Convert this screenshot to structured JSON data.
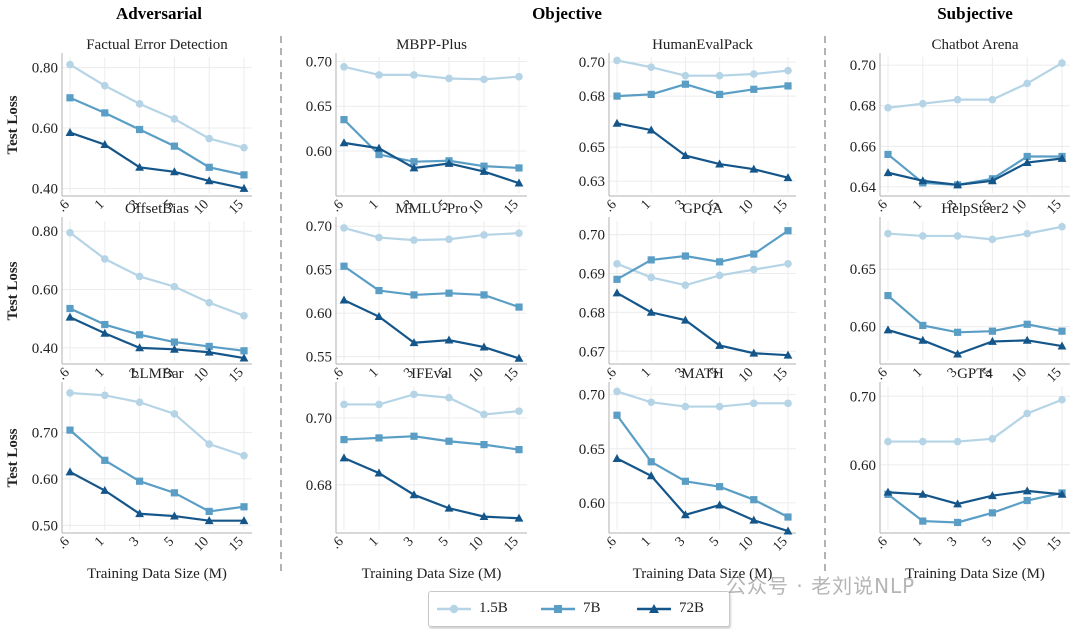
{
  "group_titles": {
    "adversarial": "Adversarial",
    "objective": "Objective",
    "subjective": "Subjective"
  },
  "legend": [
    {
      "label": "1.5B",
      "color": "#b5d4e6",
      "marker": "circle"
    },
    {
      "label": "7B",
      "color": "#5a9ec6",
      "marker": "square"
    },
    {
      "label": "72B",
      "color": "#15568a",
      "marker": "triangle"
    }
  ],
  "watermark": "公众号 · 老刘说NLP",
  "chart_data": [
    {
      "type": "line",
      "title": "Factual Error Detection",
      "ylabel": "Test Loss",
      "xlabel": "",
      "x": [
        ".6",
        "1",
        "3",
        "5",
        "10",
        "15"
      ],
      "yticks": [
        "0.80",
        "0.60",
        "0.40"
      ],
      "ytick_values": [
        0.8,
        0.6,
        0.4
      ],
      "ylim": [
        0.385,
        0.835
      ],
      "series": [
        {
          "name": "1.5B",
          "values": [
            0.81,
            0.74,
            0.68,
            0.63,
            0.565,
            0.535
          ]
        },
        {
          "name": "7B",
          "values": [
            0.7,
            0.65,
            0.595,
            0.54,
            0.47,
            0.445
          ]
        },
        {
          "name": "72B",
          "values": [
            0.585,
            0.545,
            0.47,
            0.455,
            0.425,
            0.4
          ]
        }
      ]
    },
    {
      "type": "line",
      "title": "MBPP-Plus",
      "ylabel": "",
      "xlabel": "",
      "x": [
        ".6",
        "1",
        "3",
        "5",
        "10",
        "15"
      ],
      "yticks": [
        "0.70",
        "0.65",
        "0.60"
      ],
      "ytick_values": [
        0.7,
        0.65,
        0.6
      ],
      "ylim": [
        0.553,
        0.705
      ],
      "series": [
        {
          "name": "1.5B",
          "values": [
            0.694,
            0.685,
            0.685,
            0.681,
            0.68,
            0.683
          ]
        },
        {
          "name": "7B",
          "values": [
            0.635,
            0.596,
            0.588,
            0.589,
            0.583,
            0.581
          ]
        },
        {
          "name": "72B",
          "values": [
            0.609,
            0.603,
            0.581,
            0.586,
            0.577,
            0.564
          ]
        }
      ]
    },
    {
      "type": "line",
      "title": "HumanEvalPack",
      "ylabel": "",
      "xlabel": "",
      "x": [
        ".6",
        "1",
        "3",
        "5",
        "10",
        "15"
      ],
      "yticks": [
        "0.70",
        "0.68",
        "0.65",
        "0.63"
      ],
      "ytick_values": [
        0.7,
        0.68,
        0.65,
        0.63
      ],
      "ylim": [
        0.623,
        0.703
      ],
      "series": [
        {
          "name": "1.5B",
          "values": [
            0.701,
            0.697,
            0.692,
            0.692,
            0.693,
            0.695
          ]
        },
        {
          "name": "7B",
          "values": [
            0.68,
            0.681,
            0.687,
            0.681,
            0.684,
            0.686
          ]
        },
        {
          "name": "72B",
          "values": [
            0.664,
            0.66,
            0.645,
            0.64,
            0.637,
            0.632
          ]
        }
      ]
    },
    {
      "type": "line",
      "title": "Chatbot Arena",
      "ylabel": "",
      "xlabel": "",
      "x": [
        ".6",
        "1",
        "3",
        "5",
        "10",
        "15"
      ],
      "yticks": [
        "0.70",
        "0.68",
        "0.66",
        "0.64"
      ],
      "ytick_values": [
        0.7,
        0.68,
        0.66,
        0.64
      ],
      "ylim": [
        0.637,
        0.704
      ],
      "series": [
        {
          "name": "1.5B",
          "values": [
            0.679,
            0.681,
            0.683,
            0.683,
            0.691,
            0.701
          ]
        },
        {
          "name": "7B",
          "values": [
            0.656,
            0.642,
            0.641,
            0.644,
            0.655,
            0.655
          ]
        },
        {
          "name": "72B",
          "values": [
            0.647,
            0.643,
            0.641,
            0.643,
            0.652,
            0.654
          ]
        }
      ]
    },
    {
      "type": "line",
      "title": "OffsetBias",
      "ylabel": "Test Loss",
      "xlabel": "",
      "x": [
        ".6",
        "1",
        "3",
        "5",
        "10",
        "15"
      ],
      "yticks": [
        "0.80",
        "0.60",
        "0.40"
      ],
      "ytick_values": [
        0.8,
        0.6,
        0.4
      ],
      "ylim": [
        0.355,
        0.835
      ],
      "series": [
        {
          "name": "1.5B",
          "values": [
            0.795,
            0.705,
            0.645,
            0.61,
            0.555,
            0.51
          ]
        },
        {
          "name": "7B",
          "values": [
            0.535,
            0.48,
            0.445,
            0.42,
            0.405,
            0.39
          ]
        },
        {
          "name": "72B",
          "values": [
            0.505,
            0.45,
            0.4,
            0.395,
            0.385,
            0.365
          ]
        }
      ]
    },
    {
      "type": "line",
      "title": "MMLU-Pro",
      "ylabel": "",
      "xlabel": "",
      "x": [
        ".6",
        "1",
        "3",
        "5",
        "10",
        "15"
      ],
      "yticks": [
        "0.70",
        "0.65",
        "0.60",
        "0.55"
      ],
      "ytick_values": [
        0.7,
        0.65,
        0.6,
        0.55
      ],
      "ylim": [
        0.545,
        0.706
      ],
      "series": [
        {
          "name": "1.5B",
          "values": [
            0.698,
            0.687,
            0.684,
            0.685,
            0.69,
            0.692
          ]
        },
        {
          "name": "7B",
          "values": [
            0.654,
            0.626,
            0.621,
            0.623,
            0.621,
            0.607
          ]
        },
        {
          "name": "72B",
          "values": [
            0.615,
            0.596,
            0.566,
            0.569,
            0.561,
            0.548
          ]
        }
      ]
    },
    {
      "type": "line",
      "title": "GPQA",
      "ylabel": "",
      "xlabel": "",
      "x": [
        ".6",
        "1",
        "3",
        "5",
        "10",
        "15"
      ],
      "yticks": [
        "0.70",
        "0.69",
        "0.68",
        "0.67"
      ],
      "ytick_values": [
        0.7,
        0.69,
        0.68,
        0.67
      ],
      "ylim": [
        0.6675,
        0.7035
      ],
      "series": [
        {
          "name": "1.5B",
          "values": [
            0.6925,
            0.689,
            0.687,
            0.6895,
            0.691,
            0.6925
          ]
        },
        {
          "name": "7B",
          "values": [
            0.6885,
            0.6935,
            0.6945,
            0.693,
            0.695,
            0.701
          ]
        },
        {
          "name": "72B",
          "values": [
            0.685,
            0.68,
            0.678,
            0.6715,
            0.6695,
            0.669
          ]
        }
      ]
    },
    {
      "type": "line",
      "title": "HelpSteer2",
      "ylabel": "",
      "xlabel": "",
      "x": [
        ".6",
        "1",
        "3",
        "5",
        "10",
        "15"
      ],
      "yticks": [
        "0.65",
        "0.60"
      ],
      "ytick_values": [
        0.65,
        0.6
      ],
      "ylim": [
        0.57,
        0.692
      ],
      "series": [
        {
          "name": "1.5B",
          "values": [
            0.681,
            0.679,
            0.679,
            0.676,
            0.681,
            0.687
          ]
        },
        {
          "name": "7B",
          "values": [
            0.627,
            0.601,
            0.595,
            0.596,
            0.602,
            0.596
          ]
        },
        {
          "name": "72B",
          "values": [
            0.597,
            0.588,
            0.576,
            0.587,
            0.588,
            0.583
          ]
        }
      ]
    },
    {
      "type": "line",
      "title": "LLMBar",
      "ylabel": "Test Loss",
      "xlabel": "Training Data Size (M)",
      "x": [
        ".6",
        "1",
        "3",
        "5",
        "10",
        "15"
      ],
      "yticks": [
        "0.70",
        "0.60",
        "0.50"
      ],
      "ytick_values": [
        0.7,
        0.6,
        0.5
      ],
      "ylim": [
        0.49,
        0.8
      ],
      "series": [
        {
          "name": "1.5B",
          "values": [
            0.785,
            0.78,
            0.765,
            0.74,
            0.675,
            0.65
          ]
        },
        {
          "name": "7B",
          "values": [
            0.705,
            0.64,
            0.595,
            0.57,
            0.53,
            0.54
          ]
        },
        {
          "name": "72B",
          "values": [
            0.615,
            0.575,
            0.525,
            0.52,
            0.51,
            0.51
          ]
        }
      ]
    },
    {
      "type": "line",
      "title": "IFEval",
      "ylabel": "",
      "xlabel": "Training Data Size (M)",
      "x": [
        ".6",
        "1",
        "3",
        "5",
        "10",
        "15"
      ],
      "yticks": [
        "0.70",
        "0.68"
      ],
      "ytick_values": [
        0.7,
        0.68
      ],
      "ylim": [
        0.6665,
        0.7095
      ],
      "series": [
        {
          "name": "1.5B",
          "values": [
            0.704,
            0.704,
            0.707,
            0.706,
            0.701,
            0.702
          ]
        },
        {
          "name": "7B",
          "values": [
            0.6935,
            0.694,
            0.6945,
            0.693,
            0.692,
            0.6905
          ]
        },
        {
          "name": "72B",
          "values": [
            0.688,
            0.6835,
            0.677,
            0.673,
            0.6705,
            0.67
          ]
        }
      ]
    },
    {
      "type": "line",
      "title": "MATH",
      "ylabel": "",
      "xlabel": "Training Data Size (M)",
      "x": [
        ".6",
        "1",
        "3",
        "5",
        "10",
        "15"
      ],
      "yticks": [
        "0.70",
        "0.65",
        "0.60"
      ],
      "ytick_values": [
        0.7,
        0.65,
        0.6
      ],
      "ylim": [
        0.575,
        0.708
      ],
      "series": [
        {
          "name": "1.5B",
          "values": [
            0.703,
            0.693,
            0.689,
            0.689,
            0.692,
            0.692
          ]
        },
        {
          "name": "7B",
          "values": [
            0.681,
            0.638,
            0.62,
            0.615,
            0.603,
            0.587
          ]
        },
        {
          "name": "72B",
          "values": [
            0.641,
            0.625,
            0.589,
            0.598,
            0.584,
            0.574
          ]
        }
      ]
    },
    {
      "type": "line",
      "title": "GPT4",
      "ylabel": "",
      "xlabel": "Training Data Size (M)",
      "x": [
        ".6",
        "1",
        "3",
        "5",
        "10",
        "15"
      ],
      "yticks": [
        "0.70",
        "0.60"
      ],
      "ytick_values": [
        0.7,
        0.6
      ],
      "ylim": [
        0.505,
        0.715
      ],
      "series": [
        {
          "name": "1.5B",
          "values": [
            0.634,
            0.634,
            0.634,
            0.638,
            0.675,
            0.695
          ]
        },
        {
          "name": "7B",
          "values": [
            0.557,
            0.518,
            0.516,
            0.53,
            0.548,
            0.559
          ]
        },
        {
          "name": "72B",
          "values": [
            0.56,
            0.557,
            0.543,
            0.555,
            0.562,
            0.557
          ]
        }
      ]
    }
  ]
}
